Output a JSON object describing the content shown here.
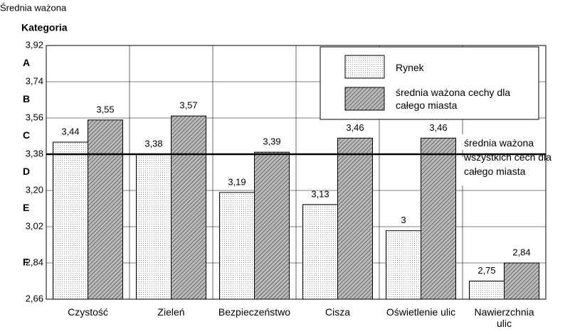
{
  "chart_data": {
    "type": "bar",
    "y_label": "Średnia ważona",
    "category_axis_label": "Kategoria",
    "categories": [
      "Czystość",
      "Zieleń",
      "Bezpieczeństwo",
      "Cisza",
      "Oświetlenie ulic",
      "Nawierzchnia ulic"
    ],
    "series": [
      {
        "name": "Rynek",
        "values": [
          3.44,
          3.38,
          3.19,
          3.13,
          3,
          2.75
        ],
        "value_labels": [
          "3,44",
          "3,38",
          "3,19",
          "3,13",
          "3",
          "2,75"
        ]
      },
      {
        "name": "średnia ważona cechy dla całego miasta",
        "values": [
          3.55,
          3.57,
          3.39,
          3.46,
          3.46,
          2.84
        ],
        "value_labels": [
          "3,55",
          "3,57",
          "3,39",
          "3,46",
          "3,46",
          "2,84"
        ]
      }
    ],
    "ylim": [
      2.66,
      3.92
    ],
    "yticks": [
      {
        "value": 2.66,
        "label": "2,66"
      },
      {
        "value": 2.84,
        "label": "2,84"
      },
      {
        "value": 3.02,
        "label": "3,02"
      },
      {
        "value": 3.2,
        "label": "3,20"
      },
      {
        "value": 3.38,
        "label": "3,38"
      },
      {
        "value": 3.56,
        "label": "3,56"
      },
      {
        "value": 3.74,
        "label": "3,74"
      },
      {
        "value": 3.92,
        "label": "3,92"
      }
    ],
    "category_ticks": [
      {
        "value": 3.83,
        "label": "A"
      },
      {
        "value": 3.65,
        "label": "B"
      },
      {
        "value": 3.47,
        "label": "C"
      },
      {
        "value": 3.29,
        "label": "D"
      },
      {
        "value": 3.11,
        "label": "E"
      },
      {
        "value": 2.84,
        "label": "F"
      }
    ],
    "reference_line": {
      "value": 3.38,
      "label": "średnia ważona wszystkich cech dla całego miasta"
    },
    "grid": true
  }
}
